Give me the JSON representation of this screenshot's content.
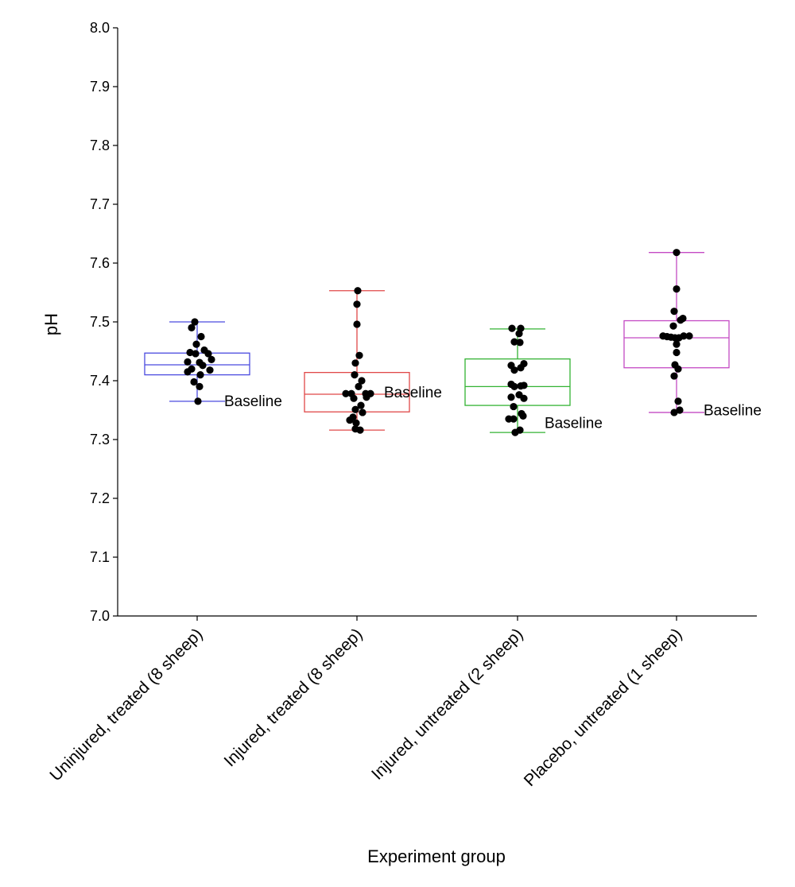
{
  "chart_data": {
    "type": "box",
    "xlabel": "Experiment group",
    "ylabel": "pH",
    "ylim": [
      7.0,
      8.0
    ],
    "yticks": [
      "7.0",
      "7.1",
      "7.2",
      "7.3",
      "7.4",
      "7.5",
      "7.6",
      "7.7",
      "7.8",
      "7.9",
      "8.0"
    ],
    "grid": false,
    "categories": [
      "Uninjured, treated (8 sheep)",
      "Injured, treated (8 sheep)",
      "Injured, untreated (2 sheep)",
      "Placebo, untreated (1 sheep)"
    ],
    "series": [
      {
        "color": "#4a4adf",
        "whisker_low": 7.365,
        "q1": 7.41,
        "median": 7.427,
        "q3": 7.447,
        "whisker_high": 7.5,
        "annotation": "Baseline",
        "annotation_y": 7.365,
        "points": [
          [
            -0.03,
            7.5
          ],
          [
            -0.07,
            7.49
          ],
          [
            0.05,
            7.475
          ],
          [
            -0.01,
            7.462
          ],
          [
            -0.09,
            7.448
          ],
          [
            -0.02,
            7.446
          ],
          [
            0.09,
            7.452
          ],
          [
            0.14,
            7.446
          ],
          [
            0.18,
            7.436
          ],
          [
            -0.12,
            7.432
          ],
          [
            0.03,
            7.431
          ],
          [
            0.07,
            7.426
          ],
          [
            -0.07,
            7.42
          ],
          [
            -0.12,
            7.415
          ],
          [
            0.16,
            7.418
          ],
          [
            0.04,
            7.41
          ],
          [
            -0.04,
            7.398
          ],
          [
            0.03,
            7.39
          ],
          [
            0.01,
            7.365
          ]
        ]
      },
      {
        "color": "#e04848",
        "whisker_low": 7.316,
        "q1": 7.347,
        "median": 7.377,
        "q3": 7.414,
        "whisker_high": 7.553,
        "annotation": "Baseline",
        "annotation_y": 7.38,
        "points": [
          [
            0.01,
            7.553
          ],
          [
            0.0,
            7.53
          ],
          [
            0.0,
            7.496
          ],
          [
            0.03,
            7.443
          ],
          [
            -0.02,
            7.43
          ],
          [
            -0.03,
            7.41
          ],
          [
            0.06,
            7.4
          ],
          [
            -0.14,
            7.378
          ],
          [
            -0.07,
            7.378
          ],
          [
            0.11,
            7.378
          ],
          [
            0.17,
            7.378
          ],
          [
            0.02,
            7.39
          ],
          [
            -0.04,
            7.37
          ],
          [
            0.12,
            7.372
          ],
          [
            0.05,
            7.358
          ],
          [
            -0.02,
            7.351
          ],
          [
            0.07,
            7.346
          ],
          [
            -0.05,
            7.338
          ],
          [
            -0.09,
            7.333
          ],
          [
            -0.01,
            7.328
          ],
          [
            -0.02,
            7.318
          ],
          [
            0.04,
            7.316
          ]
        ]
      },
      {
        "color": "#33b333",
        "whisker_low": 7.312,
        "q1": 7.358,
        "median": 7.39,
        "q3": 7.437,
        "whisker_high": 7.488,
        "annotation": "Baseline",
        "annotation_y": 7.328,
        "points": [
          [
            -0.07,
            7.489
          ],
          [
            0.04,
            7.489
          ],
          [
            0.02,
            7.48
          ],
          [
            -0.04,
            7.466
          ],
          [
            0.03,
            7.465
          ],
          [
            -0.08,
            7.426
          ],
          [
            0.08,
            7.429
          ],
          [
            0.04,
            7.422
          ],
          [
            -0.04,
            7.418
          ],
          [
            -0.08,
            7.394
          ],
          [
            0.08,
            7.392
          ],
          [
            0.04,
            7.391
          ],
          [
            -0.04,
            7.39
          ],
          [
            0.02,
            7.376
          ],
          [
            -0.08,
            7.372
          ],
          [
            0.08,
            7.37
          ],
          [
            -0.05,
            7.356
          ],
          [
            0.05,
            7.344
          ],
          [
            0.07,
            7.34
          ],
          [
            -0.05,
            7.335
          ],
          [
            -0.11,
            7.335
          ],
          [
            0.03,
            7.316
          ],
          [
            -0.03,
            7.312
          ]
        ]
      },
      {
        "color": "#c44ac4",
        "whisker_low": 7.346,
        "q1": 7.422,
        "median": 7.473,
        "q3": 7.502,
        "whisker_high": 7.618,
        "annotation": "Baseline",
        "annotation_y": 7.349,
        "points": [
          [
            0.0,
            7.618
          ],
          [
            0.0,
            7.556
          ],
          [
            -0.03,
            7.518
          ],
          [
            0.08,
            7.506
          ],
          [
            0.05,
            7.503
          ],
          [
            -0.04,
            7.493
          ],
          [
            -0.17,
            7.476
          ],
          [
            -0.12,
            7.475
          ],
          [
            -0.07,
            7.474
          ],
          [
            -0.02,
            7.473
          ],
          [
            0.03,
            7.473
          ],
          [
            0.09,
            7.476
          ],
          [
            0.16,
            7.476
          ],
          [
            0.0,
            7.462
          ],
          [
            0.0,
            7.448
          ],
          [
            -0.02,
            7.427
          ],
          [
            0.02,
            7.42
          ],
          [
            -0.03,
            7.408
          ],
          [
            0.02,
            7.365
          ],
          [
            0.04,
            7.35
          ],
          [
            -0.03,
            7.346
          ]
        ]
      }
    ]
  }
}
